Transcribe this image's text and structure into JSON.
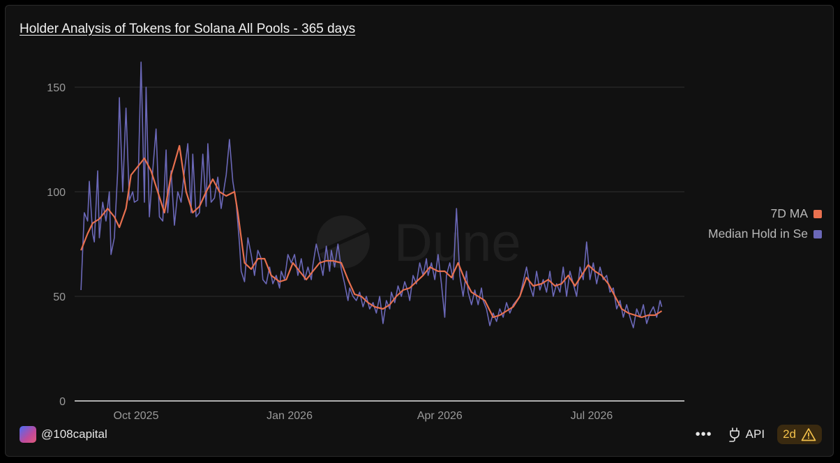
{
  "title": "Holder Analysis of Tokens for Solana All Pools - 365 days",
  "watermark": "Dune",
  "footer": {
    "handle": "@108capital",
    "more_icon": "ellipsis-icon",
    "api_label": "API",
    "badge_label": "2d",
    "badge_icon": "warning-icon"
  },
  "colors": {
    "ma": "#e8704f",
    "median": "#6b68b8",
    "grid": "#2e2e2e",
    "text": "#9a9a9a"
  },
  "chart_data": {
    "type": "line",
    "title": "Holder Analysis of Tokens for Solana All Pools - 365 days",
    "x_range": [
      "2025-08-29",
      "2026-08-29"
    ],
    "x_ticks": [
      {
        "label": "Oct 2025",
        "date": "2025-10-01"
      },
      {
        "label": "Jan 2026",
        "date": "2026-01-01"
      },
      {
        "label": "Apr 2026",
        "date": "2026-04-01"
      },
      {
        "label": "Jul 2026",
        "date": "2026-07-01"
      }
    ],
    "ylim": [
      0,
      160
    ],
    "y_ticks": [
      0,
      50,
      100,
      150
    ],
    "grid": true,
    "legend_position": "right",
    "series": [
      {
        "name": "7D MA",
        "color": "#e8704f",
        "points": [
          [
            "2025-08-29",
            72
          ],
          [
            "2025-09-02",
            80
          ],
          [
            "2025-09-05",
            85
          ],
          [
            "2025-09-09",
            87
          ],
          [
            "2025-09-14",
            92
          ],
          [
            "2025-09-18",
            88
          ],
          [
            "2025-09-21",
            83
          ],
          [
            "2025-09-25",
            92
          ],
          [
            "2025-09-28",
            108
          ],
          [
            "2025-10-02",
            112
          ],
          [
            "2025-10-06",
            116
          ],
          [
            "2025-10-10",
            110
          ],
          [
            "2025-10-14",
            100
          ],
          [
            "2025-10-18",
            90
          ],
          [
            "2025-10-22",
            108
          ],
          [
            "2025-10-27",
            122
          ],
          [
            "2025-10-31",
            100
          ],
          [
            "2025-11-04",
            90
          ],
          [
            "2025-11-08",
            93
          ],
          [
            "2025-11-12",
            100
          ],
          [
            "2025-11-16",
            106
          ],
          [
            "2025-11-20",
            100
          ],
          [
            "2025-11-24",
            98
          ],
          [
            "2025-11-29",
            100
          ],
          [
            "2025-12-01",
            90
          ],
          [
            "2025-12-05",
            66
          ],
          [
            "2025-12-09",
            63
          ],
          [
            "2025-12-13",
            68
          ],
          [
            "2025-12-17",
            68
          ],
          [
            "2025-12-21",
            60
          ],
          [
            "2025-12-26",
            57
          ],
          [
            "2025-12-30",
            58
          ],
          [
            "2026-01-03",
            66
          ],
          [
            "2026-01-07",
            62
          ],
          [
            "2026-01-11",
            58
          ],
          [
            "2026-01-15",
            62
          ],
          [
            "2026-01-19",
            66
          ],
          [
            "2026-01-23",
            67
          ],
          [
            "2026-01-27",
            67
          ],
          [
            "2026-02-01",
            66
          ],
          [
            "2026-02-05",
            58
          ],
          [
            "2026-02-09",
            51
          ],
          [
            "2026-02-13",
            50
          ],
          [
            "2026-02-17",
            47
          ],
          [
            "2026-02-21",
            45
          ],
          [
            "2026-02-26",
            44
          ],
          [
            "2026-03-02",
            46
          ],
          [
            "2026-03-06",
            50
          ],
          [
            "2026-03-10",
            53
          ],
          [
            "2026-03-14",
            54
          ],
          [
            "2026-03-18",
            57
          ],
          [
            "2026-03-22",
            60
          ],
          [
            "2026-03-26",
            64
          ],
          [
            "2026-03-31",
            62
          ],
          [
            "2026-04-04",
            62
          ],
          [
            "2026-04-08",
            59
          ],
          [
            "2026-04-12",
            66
          ],
          [
            "2026-04-16",
            58
          ],
          [
            "2026-04-20",
            52
          ],
          [
            "2026-04-24",
            50
          ],
          [
            "2026-04-28",
            48
          ],
          [
            "2026-05-03",
            40
          ],
          [
            "2026-05-07",
            41
          ],
          [
            "2026-05-11",
            43
          ],
          [
            "2026-05-15",
            45
          ],
          [
            "2026-05-19",
            50
          ],
          [
            "2026-05-23",
            59
          ],
          [
            "2026-05-27",
            55
          ],
          [
            "2026-06-01",
            56
          ],
          [
            "2026-06-05",
            58
          ],
          [
            "2026-06-09",
            55
          ],
          [
            "2026-06-13",
            56
          ],
          [
            "2026-06-17",
            60
          ],
          [
            "2026-06-21",
            55
          ],
          [
            "2026-06-25",
            60
          ],
          [
            "2026-06-29",
            65
          ],
          [
            "2026-07-03",
            62
          ],
          [
            "2026-07-07",
            60
          ],
          [
            "2026-07-11",
            56
          ],
          [
            "2026-07-15",
            50
          ],
          [
            "2026-07-19",
            44
          ],
          [
            "2026-07-23",
            42
          ],
          [
            "2026-07-27",
            41
          ],
          [
            "2026-07-31",
            40
          ],
          [
            "2026-08-04",
            41
          ],
          [
            "2026-08-08",
            41
          ],
          [
            "2026-08-12",
            43
          ]
        ]
      },
      {
        "name": "Median Hold in Se",
        "color": "#6b68b8",
        "points": [
          [
            "2025-08-29",
            53
          ],
          [
            "2025-08-31",
            90
          ],
          [
            "2025-09-02",
            86
          ],
          [
            "2025-09-03",
            105
          ],
          [
            "2025-09-05",
            80
          ],
          [
            "2025-09-06",
            76
          ],
          [
            "2025-09-08",
            110
          ],
          [
            "2025-09-09",
            78
          ],
          [
            "2025-09-11",
            95
          ],
          [
            "2025-09-13",
            86
          ],
          [
            "2025-09-15",
            100
          ],
          [
            "2025-09-16",
            70
          ],
          [
            "2025-09-18",
            78
          ],
          [
            "2025-09-20",
            110
          ],
          [
            "2025-09-21",
            145
          ],
          [
            "2025-09-23",
            100
          ],
          [
            "2025-09-25",
            140
          ],
          [
            "2025-09-27",
            96
          ],
          [
            "2025-09-29",
            100
          ],
          [
            "2025-09-30",
            95
          ],
          [
            "2025-10-02",
            96
          ],
          [
            "2025-10-04",
            162
          ],
          [
            "2025-10-06",
            95
          ],
          [
            "2025-10-07",
            150
          ],
          [
            "2025-10-09",
            88
          ],
          [
            "2025-10-11",
            110
          ],
          [
            "2025-10-13",
            130
          ],
          [
            "2025-10-15",
            88
          ],
          [
            "2025-10-17",
            86
          ],
          [
            "2025-10-19",
            120
          ],
          [
            "2025-10-20",
            90
          ],
          [
            "2025-10-22",
            110
          ],
          [
            "2025-10-24",
            84
          ],
          [
            "2025-10-26",
            100
          ],
          [
            "2025-10-28",
            95
          ],
          [
            "2025-10-30",
            110
          ],
          [
            "2025-11-01",
            123
          ],
          [
            "2025-11-03",
            90
          ],
          [
            "2025-11-04",
            118
          ],
          [
            "2025-11-06",
            88
          ],
          [
            "2025-11-08",
            90
          ],
          [
            "2025-11-10",
            118
          ],
          [
            "2025-11-12",
            93
          ],
          [
            "2025-11-13",
            123
          ],
          [
            "2025-11-15",
            95
          ],
          [
            "2025-11-17",
            97
          ],
          [
            "2025-11-19",
            107
          ],
          [
            "2025-11-21",
            92
          ],
          [
            "2025-11-23",
            103
          ],
          [
            "2025-11-24",
            108
          ],
          [
            "2025-11-26",
            125
          ],
          [
            "2025-11-28",
            105
          ],
          [
            "2025-11-30",
            95
          ],
          [
            "2025-12-02",
            75
          ],
          [
            "2025-12-03",
            62
          ],
          [
            "2025-12-05",
            57
          ],
          [
            "2025-12-07",
            78
          ],
          [
            "2025-12-09",
            70
          ],
          [
            "2025-12-11",
            60
          ],
          [
            "2025-12-13",
            72
          ],
          [
            "2025-12-15",
            68
          ],
          [
            "2025-12-16",
            58
          ],
          [
            "2025-12-18",
            56
          ],
          [
            "2025-12-20",
            64
          ],
          [
            "2025-12-22",
            56
          ],
          [
            "2025-12-24",
            60
          ],
          [
            "2025-12-26",
            54
          ],
          [
            "2025-12-27",
            62
          ],
          [
            "2025-12-29",
            58
          ],
          [
            "2025-12-31",
            70
          ],
          [
            "2026-01-02",
            66
          ],
          [
            "2026-01-04",
            70
          ],
          [
            "2026-01-06",
            60
          ],
          [
            "2026-01-08",
            68
          ],
          [
            "2026-01-10",
            58
          ],
          [
            "2026-01-12",
            64
          ],
          [
            "2026-01-14",
            58
          ],
          [
            "2026-01-15",
            65
          ],
          [
            "2026-01-17",
            75
          ],
          [
            "2026-01-19",
            68
          ],
          [
            "2026-01-21",
            60
          ],
          [
            "2026-01-23",
            74
          ],
          [
            "2026-01-25",
            62
          ],
          [
            "2026-01-26",
            72
          ],
          [
            "2026-01-28",
            64
          ],
          [
            "2026-01-30",
            75
          ],
          [
            "2026-02-01",
            63
          ],
          [
            "2026-02-03",
            56
          ],
          [
            "2026-02-05",
            48
          ],
          [
            "2026-02-06",
            54
          ],
          [
            "2026-02-08",
            50
          ],
          [
            "2026-02-10",
            48
          ],
          [
            "2026-02-12",
            52
          ],
          [
            "2026-02-14",
            45
          ],
          [
            "2026-02-16",
            50
          ],
          [
            "2026-02-18",
            44
          ],
          [
            "2026-02-20",
            47
          ],
          [
            "2026-02-22",
            42
          ],
          [
            "2026-02-24",
            50
          ],
          [
            "2026-02-26",
            37
          ],
          [
            "2026-02-28",
            48
          ],
          [
            "2026-03-02",
            44
          ],
          [
            "2026-03-03",
            52
          ],
          [
            "2026-03-05",
            47
          ],
          [
            "2026-03-07",
            55
          ],
          [
            "2026-03-09",
            50
          ],
          [
            "2026-03-11",
            57
          ],
          [
            "2026-03-13",
            52
          ],
          [
            "2026-03-14",
            48
          ],
          [
            "2026-03-16",
            60
          ],
          [
            "2026-03-18",
            56
          ],
          [
            "2026-03-20",
            66
          ],
          [
            "2026-03-22",
            60
          ],
          [
            "2026-03-24",
            68
          ],
          [
            "2026-03-25",
            60
          ],
          [
            "2026-03-27",
            66
          ],
          [
            "2026-03-29",
            58
          ],
          [
            "2026-03-31",
            70
          ],
          [
            "2026-04-02",
            56
          ],
          [
            "2026-04-04",
            40
          ],
          [
            "2026-04-05",
            60
          ],
          [
            "2026-04-07",
            66
          ],
          [
            "2026-04-09",
            58
          ],
          [
            "2026-04-11",
            92
          ],
          [
            "2026-04-13",
            60
          ],
          [
            "2026-04-15",
            50
          ],
          [
            "2026-04-17",
            62
          ],
          [
            "2026-04-18",
            52
          ],
          [
            "2026-04-20",
            46
          ],
          [
            "2026-04-22",
            53
          ],
          [
            "2026-04-24",
            46
          ],
          [
            "2026-04-26",
            54
          ],
          [
            "2026-04-27",
            48
          ],
          [
            "2026-04-29",
            44
          ],
          [
            "2026-05-01",
            36
          ],
          [
            "2026-05-03",
            42
          ],
          [
            "2026-05-05",
            38
          ],
          [
            "2026-05-07",
            44
          ],
          [
            "2026-05-09",
            40
          ],
          [
            "2026-05-11",
            47
          ],
          [
            "2026-05-13",
            42
          ],
          [
            "2026-05-15",
            46
          ],
          [
            "2026-05-17",
            48
          ],
          [
            "2026-05-19",
            50
          ],
          [
            "2026-05-21",
            57
          ],
          [
            "2026-05-23",
            64
          ],
          [
            "2026-05-25",
            55
          ],
          [
            "2026-05-27",
            50
          ],
          [
            "2026-05-29",
            62
          ],
          [
            "2026-05-31",
            53
          ],
          [
            "2026-06-02",
            58
          ],
          [
            "2026-06-04",
            52
          ],
          [
            "2026-06-06",
            62
          ],
          [
            "2026-06-08",
            50
          ],
          [
            "2026-06-10",
            56
          ],
          [
            "2026-06-12",
            52
          ],
          [
            "2026-06-14",
            64
          ],
          [
            "2026-06-16",
            50
          ],
          [
            "2026-06-18",
            62
          ],
          [
            "2026-06-20",
            56
          ],
          [
            "2026-06-22",
            50
          ],
          [
            "2026-06-24",
            64
          ],
          [
            "2026-06-26",
            58
          ],
          [
            "2026-06-28",
            76
          ],
          [
            "2026-06-30",
            58
          ],
          [
            "2026-07-02",
            66
          ],
          [
            "2026-07-04",
            56
          ],
          [
            "2026-07-06",
            64
          ],
          [
            "2026-07-08",
            58
          ],
          [
            "2026-07-10",
            60
          ],
          [
            "2026-07-12",
            52
          ],
          [
            "2026-07-14",
            54
          ],
          [
            "2026-07-16",
            44
          ],
          [
            "2026-07-18",
            48
          ],
          [
            "2026-07-20",
            40
          ],
          [
            "2026-07-22",
            46
          ],
          [
            "2026-07-24",
            40
          ],
          [
            "2026-07-26",
            35
          ],
          [
            "2026-07-28",
            44
          ],
          [
            "2026-07-30",
            40
          ],
          [
            "2026-08-01",
            46
          ],
          [
            "2026-08-03",
            37
          ],
          [
            "2026-08-05",
            42
          ],
          [
            "2026-08-07",
            45
          ],
          [
            "2026-08-09",
            40
          ],
          [
            "2026-08-11",
            48
          ],
          [
            "2026-08-12",
            45
          ]
        ]
      }
    ]
  }
}
